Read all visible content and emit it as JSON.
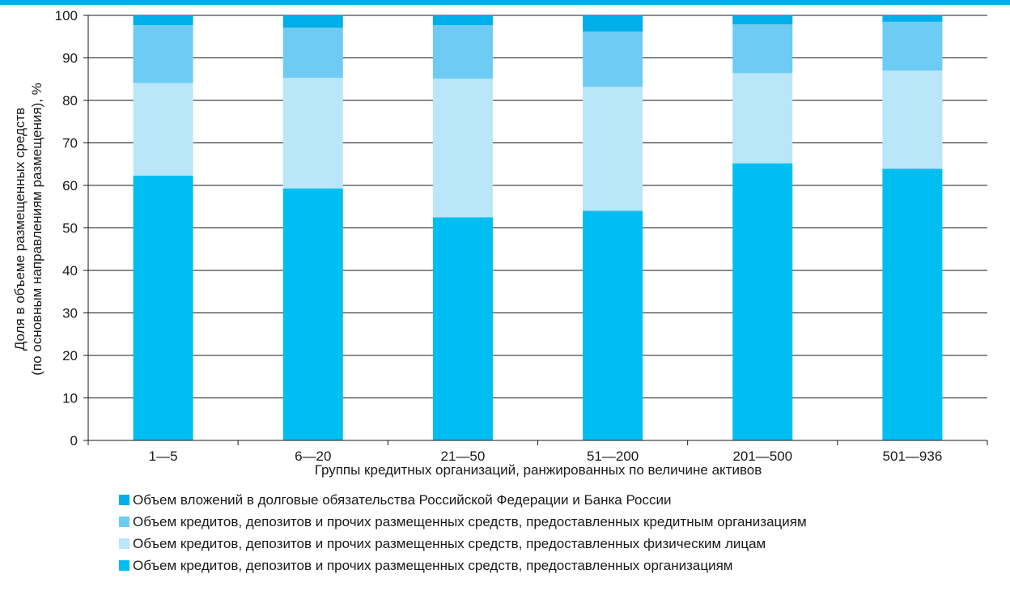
{
  "chart_data": {
    "type": "bar",
    "stacked": true,
    "categories": [
      "1—5",
      "6—20",
      "21—50",
      "51—200",
      "201—500",
      "501—936"
    ],
    "xlabel": "Группы кредитных организаций, ранжированных по величине активов",
    "ylabel_line1": "Доля в объеме размещенных средств",
    "ylabel_line2": "(по основным направлениям размещения), %",
    "ylim": [
      0,
      100
    ],
    "yticks": [
      0,
      10,
      20,
      30,
      40,
      50,
      60,
      70,
      80,
      90,
      100
    ],
    "grid": true,
    "legend_position": "bottom",
    "series": [
      {
        "name": "Объем кредитов, депозитов и прочих размещенных средств, предоставленных организациям",
        "color": "#00bdf2",
        "values": [
          62.3,
          59.3,
          52.5,
          54.0,
          65.2,
          63.9
        ]
      },
      {
        "name": "Объем кредитов, депозитов и прочих размещенных средств, предоставленных физическим лицам",
        "color": "#b9e6f8",
        "values": [
          21.8,
          26.0,
          32.6,
          29.2,
          21.2,
          23.1
        ]
      },
      {
        "name": "Объем кредитов, депозитов и прочих размещенных средств, предоставленных кредитным организациям",
        "color": "#6ecbf3",
        "values": [
          13.6,
          11.8,
          12.6,
          13.0,
          11.5,
          11.5
        ]
      },
      {
        "name": "Объем вложений в  долговые обязательства Российской Федерации и Банка России",
        "color": "#00aeea",
        "values": [
          2.3,
          2.9,
          2.3,
          3.8,
          2.1,
          1.5
        ]
      }
    ],
    "legend_order": [
      3,
      2,
      1,
      0
    ]
  }
}
